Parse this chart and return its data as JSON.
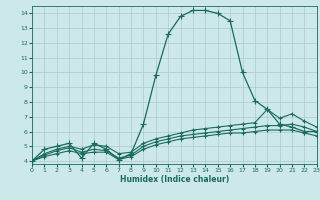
{
  "x": [
    0,
    1,
    2,
    3,
    4,
    5,
    6,
    7,
    8,
    9,
    10,
    11,
    12,
    13,
    14,
    15,
    16,
    17,
    18,
    19,
    20,
    21,
    22,
    23
  ],
  "line_peak": [
    4.0,
    4.8,
    5.0,
    5.2,
    4.2,
    5.2,
    4.8,
    4.1,
    4.5,
    6.5,
    9.8,
    12.6,
    13.8,
    14.2,
    14.2,
    14.0,
    13.5,
    10.0,
    8.1,
    7.5,
    6.5,
    6.3,
    6.0,
    6.0
  ],
  "line_high": [
    4.0,
    4.5,
    4.8,
    5.0,
    4.8,
    5.1,
    5.0,
    4.5,
    4.6,
    5.2,
    5.5,
    5.7,
    5.9,
    6.1,
    6.2,
    6.3,
    6.4,
    6.5,
    6.6,
    7.5,
    6.9,
    7.2,
    6.7,
    6.3
  ],
  "line_mid": [
    4.0,
    4.4,
    4.7,
    4.9,
    4.6,
    4.8,
    4.7,
    4.2,
    4.4,
    5.0,
    5.3,
    5.5,
    5.7,
    5.8,
    5.9,
    6.0,
    6.1,
    6.2,
    6.3,
    6.4,
    6.4,
    6.5,
    6.3,
    6.0
  ],
  "line_low": [
    4.0,
    4.3,
    4.5,
    4.7,
    4.5,
    4.6,
    4.6,
    4.1,
    4.3,
    4.8,
    5.1,
    5.3,
    5.5,
    5.6,
    5.7,
    5.8,
    5.9,
    5.9,
    6.0,
    6.1,
    6.1,
    6.1,
    5.9,
    5.7
  ],
  "bg_color": "#cde8e8",
  "line_color": "#1a6b5a",
  "grid_color": "#aacccc",
  "xlabel": "Humidex (Indice chaleur)",
  "xlim": [
    0,
    23
  ],
  "ylim": [
    3.8,
    14.5
  ],
  "yticks": [
    4,
    5,
    6,
    7,
    8,
    9,
    10,
    11,
    12,
    13,
    14
  ],
  "xticks": [
    0,
    1,
    2,
    3,
    4,
    5,
    6,
    7,
    8,
    9,
    10,
    11,
    12,
    13,
    14,
    15,
    16,
    17,
    18,
    19,
    20,
    21,
    22,
    23
  ]
}
